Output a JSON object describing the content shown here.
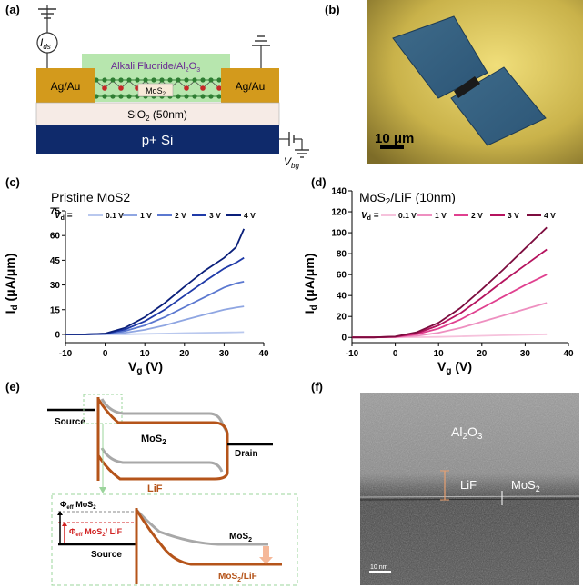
{
  "labels": {
    "a": "(a)",
    "b": "(b)",
    "c": "(c)",
    "d": "(d)",
    "e": "(e)",
    "f": "(f)"
  },
  "panel_a": {
    "ids": "I",
    "ids_sub": "ds",
    "overlayer": "Alkali Fluoride/Al",
    "overlayer_sub": "2",
    "overlayer_tail": "O",
    "overlayer_sub2": "3",
    "contact_left": "Ag/Au",
    "contact_right": "Ag/Au",
    "channel": "MoS",
    "channel_sub": "2",
    "oxide": "SiO",
    "oxide_sub": "2",
    "oxide_tail": " (50nm)",
    "substrate": "p+ Si",
    "vbg": "V",
    "vbg_sub": "bg"
  },
  "panel_b": {
    "scalebar": "10 μm"
  },
  "panel_e": {
    "source_top": "Source",
    "drain": "Drain",
    "mos2_top": "MoS",
    "mos2_top_sub": "2",
    "lif_top": "LiF",
    "phi_mos2": "Φ",
    "phi_mos2_sub": "eff",
    "phi_mos2_tail": " MoS",
    "phi_mos2_tail_sub": "2",
    "phi_lif": "Φ",
    "phi_lif_sub": "eff",
    "phi_lif_tail": " MoS",
    "phi_lif_tail_sub": "2",
    "phi_lif_end": "/ LiF",
    "mos2_zoom": "MoS",
    "mos2_zoom_sub": "2",
    "source_zoom": "Source",
    "mos2lif_zoom": "MoS",
    "mos2lif_zoom_sub": "2",
    "mos2lif_zoom_tail": "/LiF"
  },
  "panel_f": {
    "al2o3": "Al",
    "al2o3_sub": "2",
    "al2o3_tail": "O",
    "al2o3_sub2": "3",
    "lif": "LiF",
    "mos2": "MoS",
    "mos2_sub": "2",
    "scalebar": "10 nm"
  },
  "chart_data": [
    {
      "type": "line",
      "title": "Pristine MoS2",
      "legend_prefix": "V",
      "legend_prefix_sub": "d",
      "legend_eq": " =",
      "xlabel": "V",
      "xlabel_sub": "g",
      "xlabel_tail": " (V)",
      "ylabel": "I",
      "ylabel_sub": "d",
      "ylabel_tail": " (μA/μm)",
      "xlim": [
        -10,
        40
      ],
      "ylim": [
        -5,
        75
      ],
      "xticks": [
        "-10",
        "0",
        "10",
        "20",
        "30",
        "40"
      ],
      "yticks": [
        "0",
        "15",
        "30",
        "45",
        "60",
        "75"
      ],
      "x": [
        -10,
        -5,
        0,
        5,
        10,
        15,
        20,
        25,
        30,
        33,
        35
      ],
      "series": [
        {
          "name": "0.1 V",
          "color": "#b9c8ee",
          "values": [
            0,
            0,
            0.05,
            0.1,
            0.3,
            0.5,
            0.8,
            1.0,
            1.2,
            1.3,
            1.4
          ]
        },
        {
          "name": "1 V",
          "color": "#8fa6e2",
          "values": [
            0,
            0,
            0.2,
            1.0,
            2.8,
            5.5,
            8.8,
            12.0,
            15.0,
            16.3,
            17.0
          ]
        },
        {
          "name": "2 V",
          "color": "#5b78d0",
          "values": [
            0,
            0,
            0.3,
            2.0,
            5.5,
            10.5,
            16.5,
            22.5,
            28.5,
            31.0,
            32.0
          ]
        },
        {
          "name": "3 V",
          "color": "#1f3aa8",
          "values": [
            0,
            0,
            0.4,
            3.0,
            8.0,
            15.0,
            23.5,
            32.0,
            40.0,
            43.5,
            46.5
          ]
        },
        {
          "name": "4 V",
          "color": "#0a1f7a",
          "values": [
            0,
            0,
            0.5,
            4.0,
            10.5,
            19.0,
            29.0,
            38.5,
            46.5,
            53.0,
            64.0
          ]
        }
      ]
    },
    {
      "type": "line",
      "title": "MoS2/LiF (10nm)",
      "title_main": "MoS",
      "title_sub": "2",
      "title_tail": "/LiF (10nm)",
      "legend_prefix": "V",
      "legend_prefix_sub": "d",
      "legend_eq": " =",
      "xlabel": "V",
      "xlabel_sub": "g",
      "xlabel_tail": " (V)",
      "ylabel": "I",
      "ylabel_sub": "d",
      "ylabel_tail": " (μA/μm)",
      "xlim": [
        -10,
        40
      ],
      "ylim": [
        -5,
        140
      ],
      "xticks": [
        "-10",
        "0",
        "10",
        "20",
        "30",
        "40"
      ],
      "yticks": [
        "0",
        "20",
        "40",
        "60",
        "80",
        "100",
        "120",
        "140"
      ],
      "x": [
        -10,
        -5,
        0,
        5,
        10,
        15,
        20,
        25,
        30,
        35
      ],
      "series": [
        {
          "name": "0.1 V",
          "color": "#f6c2dc",
          "values": [
            0,
            0,
            0.05,
            0.2,
            0.5,
            1.0,
            1.5,
            2.0,
            2.5,
            3.0
          ]
        },
        {
          "name": "1 V",
          "color": "#ee8fc0",
          "values": [
            0,
            0,
            0.3,
            1.5,
            4.5,
            9.0,
            15.0,
            21.0,
            27.0,
            33.0
          ]
        },
        {
          "name": "2 V",
          "color": "#e0408f",
          "values": [
            0,
            0,
            0.5,
            3.0,
            8.5,
            17.0,
            28.0,
            39.0,
            50.0,
            60.0
          ]
        },
        {
          "name": "3 V",
          "color": "#b5135e",
          "values": [
            0,
            0,
            0.7,
            4.0,
            11.5,
            23.0,
            38.0,
            54.0,
            69.0,
            84.0
          ]
        },
        {
          "name": "4 V",
          "color": "#7d0d3f",
          "values": [
            0,
            0,
            0.8,
            5.0,
            14.0,
            28.0,
            46.0,
            65.0,
            85.0,
            105.0
          ]
        }
      ]
    }
  ]
}
